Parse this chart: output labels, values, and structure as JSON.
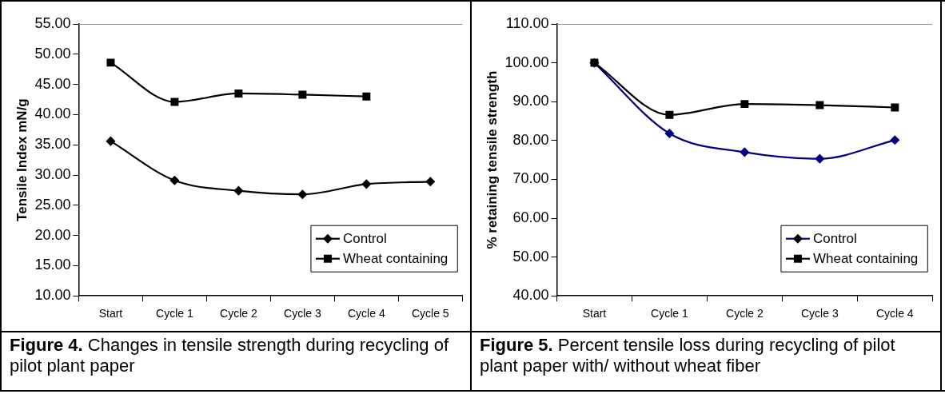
{
  "chart_data": [
    {
      "type": "line",
      "categories": [
        "Start",
        "Cycle 1",
        "Cycle 2",
        "Cycle 3",
        "Cycle 4",
        "Cycle 5"
      ],
      "ylabel": "Tensile Index mN/g",
      "ylim": [
        10,
        55
      ],
      "yticks": [
        {
          "value": 10,
          "label": "10.00"
        },
        {
          "value": 15,
          "label": "15.00"
        },
        {
          "value": 20,
          "label": "20.00"
        },
        {
          "value": 25,
          "label": "25.00"
        },
        {
          "value": 30,
          "label": "30.00"
        },
        {
          "value": 35,
          "label": "35.00"
        },
        {
          "value": 40,
          "label": "40.00"
        },
        {
          "value": 45,
          "label": "45.00"
        },
        {
          "value": 50,
          "label": "50.00"
        },
        {
          "value": 55,
          "label": "55.00"
        }
      ],
      "grid": false,
      "legend": "bottom right",
      "annotations": [
        "Figure 4. Changes in tensile strength during recycling of pilot plant paper"
      ],
      "series": [
        {
          "name": "Control",
          "color": "#000000",
          "marker": "diamond",
          "values": [
            35.6,
            29.1,
            27.4,
            26.8,
            28.5,
            28.9
          ]
        },
        {
          "name": "Wheat containing",
          "color": "#000000",
          "marker": "square",
          "values": [
            48.6,
            42.1,
            43.5,
            43.3,
            43.0,
            null
          ]
        }
      ]
    },
    {
      "type": "line",
      "categories": [
        "Start",
        "Cycle 1",
        "Cycle 2",
        "Cycle 3",
        "Cycle 4"
      ],
      "ylabel": "% retaining tensile strength",
      "ylim": [
        40,
        110
      ],
      "yticks": [
        {
          "value": 40,
          "label": "40.00"
        },
        {
          "value": 50,
          "label": "50.00"
        },
        {
          "value": 60,
          "label": "60.00"
        },
        {
          "value": 70,
          "label": "70.00"
        },
        {
          "value": 80,
          "label": "80.00"
        },
        {
          "value": 90,
          "label": "90.00"
        },
        {
          "value": 100,
          "label": "100.00"
        },
        {
          "value": 110,
          "label": "110.00"
        }
      ],
      "grid": false,
      "legend": "bottom right",
      "annotations": [
        "Figure 5. Percent tensile loss during recycling of pilot plant paper with/ without wheat fiber"
      ],
      "series": [
        {
          "name": "Control",
          "color": "#000080",
          "marker": "diamond",
          "values": [
            100,
            81.8,
            77.0,
            75.3,
            80.1
          ]
        },
        {
          "name": "Wheat containing",
          "color": "#000000",
          "marker": "square",
          "values": [
            100,
            86.6,
            89.4,
            89.1,
            88.5
          ]
        }
      ]
    }
  ]
}
